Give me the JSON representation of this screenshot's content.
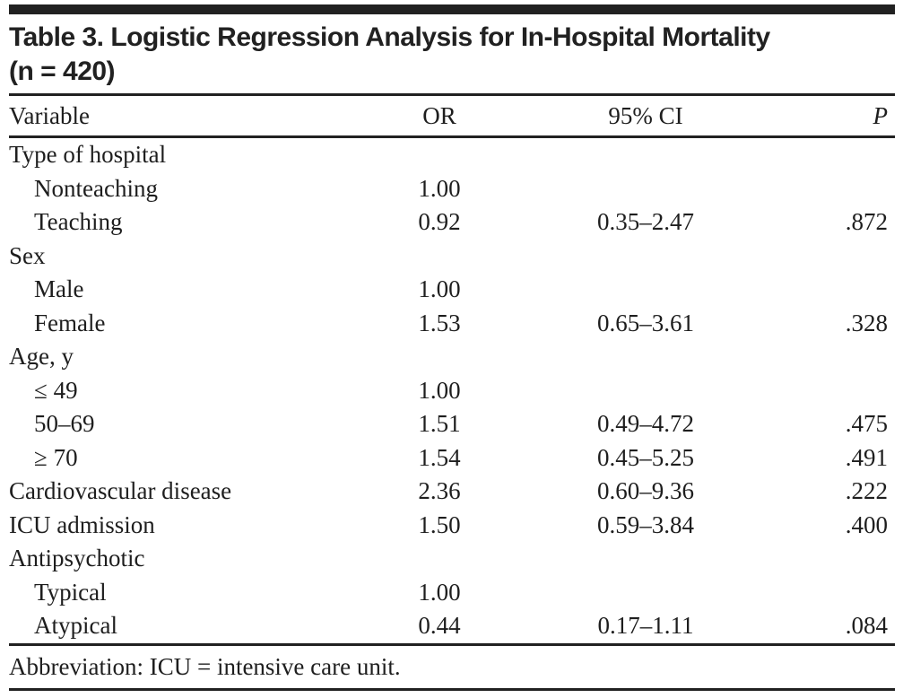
{
  "table": {
    "title_line1": "Table 3. Logistic Regression Analysis for In-Hospital Mortality",
    "title_line2": "(n = 420)",
    "columns": [
      "Variable",
      "OR",
      "95% CI",
      "P"
    ],
    "rows": [
      {
        "variable": "Type of hospital",
        "indent": false,
        "or": "",
        "ci": "",
        "p": ""
      },
      {
        "variable": "Nonteaching",
        "indent": true,
        "or": "1.00",
        "ci": "",
        "p": ""
      },
      {
        "variable": "Teaching",
        "indent": true,
        "or": "0.92",
        "ci": "0.35–2.47",
        "p": ".872"
      },
      {
        "variable": "Sex",
        "indent": false,
        "or": "",
        "ci": "",
        "p": ""
      },
      {
        "variable": "Male",
        "indent": true,
        "or": "1.00",
        "ci": "",
        "p": ""
      },
      {
        "variable": "Female",
        "indent": true,
        "or": "1.53",
        "ci": "0.65–3.61",
        "p": ".328"
      },
      {
        "variable": "Age, y",
        "indent": false,
        "or": "",
        "ci": "",
        "p": ""
      },
      {
        "variable": "≤ 49",
        "indent": true,
        "or": "1.00",
        "ci": "",
        "p": ""
      },
      {
        "variable": "50–69",
        "indent": true,
        "or": "1.51",
        "ci": "0.49–4.72",
        "p": ".475"
      },
      {
        "variable": "≥ 70",
        "indent": true,
        "or": "1.54",
        "ci": "0.45–5.25",
        "p": ".491"
      },
      {
        "variable": "Cardiovascular disease",
        "indent": false,
        "or": "2.36",
        "ci": "0.60–9.36",
        "p": ".222"
      },
      {
        "variable": "ICU admission",
        "indent": false,
        "or": "1.50",
        "ci": "0.59–3.84",
        "p": ".400"
      },
      {
        "variable": "Antipsychotic",
        "indent": false,
        "or": "",
        "ci": "",
        "p": ""
      },
      {
        "variable": "Typical",
        "indent": true,
        "or": "1.00",
        "ci": "",
        "p": ""
      },
      {
        "variable": "Atypical",
        "indent": true,
        "or": "0.44",
        "ci": "0.17–1.11",
        "p": ".084"
      }
    ],
    "footnote": "Abbreviation: ICU = intensive care unit.",
    "colors": {
      "text": "#1e1e1e",
      "rule": "#212121",
      "background": "#ffffff"
    }
  }
}
